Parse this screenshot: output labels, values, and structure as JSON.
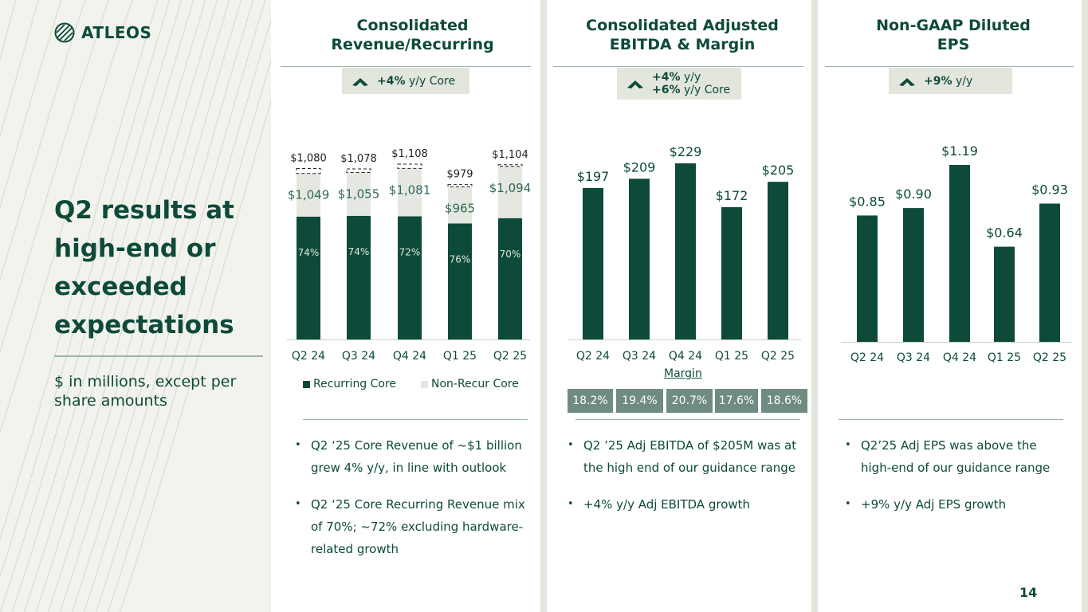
{
  "brand": {
    "name": "ATLEOS"
  },
  "left": {
    "headline": "Q2 results at high-end or exceeded expectations",
    "subtitle": "$ in millions, except per share amounts"
  },
  "page_number": "14",
  "colors": {
    "dark_green": "#0d4a3a",
    "light_bar": "#e5e8e0",
    "margin_box": "#6f8c81"
  },
  "panels": {
    "revenue": {
      "title": "Consolidated Revenue/Recurring",
      "badge": {
        "bold": "+4%",
        "text": " y/y Core"
      },
      "legend": [
        "Recurring Core",
        "Non-Recur Core"
      ],
      "bullets": [
        "Q2 ‘25 Core Revenue of ~$1 billion grew 4% y/y, in line with outlook",
        "Q2 ‘25 Core Recurring Revenue mix of 70%;  ~72% excluding hardware-related growth"
      ]
    },
    "ebitda": {
      "title": "Consolidated Adjusted EBITDA & Margin",
      "badge": {
        "line1_bold": "+4%",
        "line1_text": " y/y",
        "line2_bold": "+6%",
        "line2_text": " y/y Core"
      },
      "margin_label": "Margin",
      "margins": [
        "18.2%",
        "19.4%",
        "20.7%",
        "17.6%",
        "18.6%"
      ],
      "bullets": [
        "Q2 ’25 Adj EBITDA of $205M was at the high end of our guidance range",
        "+4% y/y Adj EBITDA growth"
      ]
    },
    "eps": {
      "title": "Non-GAAP Diluted EPS",
      "badge": {
        "bold": "+9%",
        "text": " y/y"
      },
      "bullets": [
        "Q2’25 Adj EPS was above the high-end of our guidance range",
        "+9% y/y Adj EPS growth"
      ]
    }
  },
  "chart_data": [
    {
      "type": "bar",
      "title": "Consolidated Revenue/Recurring",
      "stacked": true,
      "categories": [
        "Q2 24",
        "Q3 24",
        "Q4 24",
        "Q1 25",
        "Q2 25"
      ],
      "core_totals": [
        1049,
        1055,
        1081,
        965,
        1094
      ],
      "core_total_labels": [
        "$1,049",
        "$1,055",
        "$1,081",
        "$965",
        "$1,094"
      ],
      "total_revenue": [
        1080,
        1078,
        1108,
        979,
        1104
      ],
      "total_revenue_labels": [
        "$1,080",
        "$1,078",
        "$1,108",
        "$979",
        "$1,104"
      ],
      "recurring_pct": [
        74,
        74,
        72,
        76,
        70
      ],
      "recurring_pct_labels": [
        "74%",
        "74%",
        "72%",
        "76%",
        "70%"
      ],
      "series": [
        {
          "name": "Recurring Core",
          "values": [
            776,
            781,
            778,
            733,
            766
          ]
        },
        {
          "name": "Non-Recur Core",
          "values": [
            273,
            274,
            303,
            232,
            328
          ]
        }
      ],
      "ylim": [
        0,
        1150
      ],
      "legend": "bottom"
    },
    {
      "type": "bar",
      "title": "Consolidated Adjusted EBITDA & Margin",
      "categories": [
        "Q2 24",
        "Q3 24",
        "Q4 24",
        "Q1 25",
        "Q2 25"
      ],
      "values": [
        197,
        209,
        229,
        172,
        205
      ],
      "value_labels": [
        "$197",
        "$209",
        "$229",
        "$172",
        "$205"
      ],
      "ylim": [
        0,
        240
      ]
    },
    {
      "type": "bar",
      "title": "Non-GAAP Diluted EPS",
      "categories": [
        "Q2 24",
        "Q3 24",
        "Q4 24",
        "Q1 25",
        "Q2 25"
      ],
      "values": [
        0.85,
        0.9,
        1.19,
        0.64,
        0.93
      ],
      "value_labels": [
        "$0.85",
        "$0.90",
        "$1.19",
        "$0.64",
        "$0.93"
      ],
      "ylim": [
        0,
        1.25
      ]
    }
  ]
}
